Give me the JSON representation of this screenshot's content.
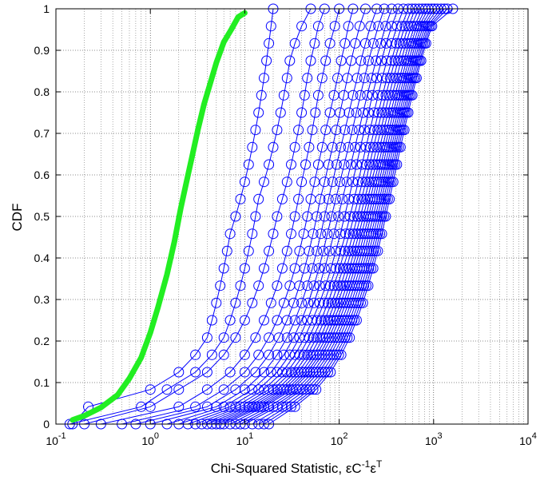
{
  "chart_data": {
    "type": "line",
    "title": "",
    "xlabel": "Chi-Squared Statistic, εC⁻¹εᵀ",
    "xlabel_parts": {
      "pre": "Chi-Squared Statistic, εC",
      "sup1": "-1",
      "mid": "ε",
      "sup2": "T"
    },
    "ylabel": "CDF",
    "xscale": "log",
    "xlim": [
      0.1,
      10000
    ],
    "ylim": [
      0,
      1
    ],
    "grid": true,
    "legend": "none",
    "x_ticks": [
      {
        "base": "10",
        "exp": "-1",
        "value": 0.1
      },
      {
        "base": "10",
        "exp": "0",
        "value": 1
      },
      {
        "base": "10",
        "exp": "1",
        "value": 10
      },
      {
        "base": "10",
        "exp": "2",
        "value": 100
      },
      {
        "base": "10",
        "exp": "3",
        "value": 1000
      },
      {
        "base": "10",
        "exp": "4",
        "value": 10000
      }
    ],
    "y_ticks": [
      "0",
      "0.1",
      "0.2",
      "0.3",
      "0.4",
      "0.5",
      "0.6",
      "0.7",
      "0.8",
      "0.9",
      "1"
    ],
    "colors": {
      "empirical": "#0000ff",
      "reference": "#22ee22",
      "grid": "#000000"
    },
    "reference_series": {
      "x": [
        0.15,
        0.2,
        0.3,
        0.45,
        0.6,
        0.8,
        1.0,
        1.2,
        1.5,
        1.8,
        2.1,
        2.4,
        2.8,
        3.2,
        3.7,
        4.3,
        5.0,
        6.0,
        7.2,
        8.5,
        10.0
      ],
      "y": [
        0.01,
        0.02,
        0.04,
        0.07,
        0.11,
        0.16,
        0.22,
        0.28,
        0.36,
        0.44,
        0.52,
        0.58,
        0.65,
        0.71,
        0.77,
        0.82,
        0.87,
        0.92,
        0.95,
        0.98,
        0.99
      ]
    },
    "empirical_series": [
      {
        "x": [
          0.15,
          0.22,
          1.0,
          2.0,
          3.0,
          4.0,
          4.5,
          5.0,
          5.5,
          6.0,
          6.5,
          7.0,
          8.0,
          9.0,
          10.0,
          11.0,
          12.0,
          13.0,
          14.0,
          15.0,
          16.0,
          17.0,
          18.0,
          19.0,
          20.0
        ]
      },
      {
        "x": [
          0.14,
          0.8,
          1.5,
          3.0,
          4.5,
          6.0,
          7.0,
          8.0,
          9.0,
          10.0,
          11.0,
          12.0,
          13.0,
          14.0,
          16.0,
          18.0,
          20.0,
          22.0,
          24.0,
          26.0,
          28.0,
          30.0,
          34.0,
          40.0,
          50.0
        ]
      },
      {
        "x": [
          0.2,
          1.0,
          2.0,
          4.0,
          6.0,
          8.0,
          10.0,
          12.0,
          14.0,
          16.0,
          18.0,
          20.0,
          22.0,
          25.0,
          28.0,
          31.0,
          34.0,
          37.0,
          40.0,
          43.0,
          46.0,
          50.0,
          55.0,
          60.0,
          70.0
        ]
      },
      {
        "x": [
          0.3,
          2.0,
          4.0,
          7.0,
          10.0,
          13.0,
          16.0,
          19.0,
          22.0,
          25.0,
          28.0,
          31.0,
          34.0,
          37.0,
          40.0,
          44.0,
          48.0,
          52.0,
          56.0,
          60.0,
          66.0,
          72.0,
          80.0,
          90.0,
          100.0
        ]
      },
      {
        "x": [
          0.5,
          3.0,
          6.0,
          10.0,
          14.0,
          18.0,
          22.0,
          26.0,
          30.0,
          34.0,
          38.0,
          42.0,
          46.0,
          50.0,
          55.0,
          60.0,
          66.0,
          72.0,
          80.0,
          88.0,
          96.0,
          105.0,
          115.0,
          125.0,
          140.0
        ]
      },
      {
        "x": [
          0.7,
          4.0,
          8.0,
          13.0,
          18.0,
          23.0,
          28.0,
          33.0,
          38.0,
          43.0,
          48.0,
          53.0,
          58.0,
          63.0,
          70.0,
          77.0,
          85.0,
          93.0,
          102.0,
          112.0,
          122.0,
          134.0,
          148.0,
          165.0,
          190.0
        ]
      },
      {
        "x": [
          1.0,
          5.0,
          10.0,
          16.0,
          22.0,
          28.0,
          34.0,
          40.0,
          46.0,
          52.0,
          58.0,
          64.0,
          70.0,
          77.0,
          85.0,
          94.0,
          104.0,
          115.0,
          127.0,
          140.0,
          155.0,
          170.0,
          190.0,
          215.0,
          250.0
        ]
      },
      {
        "x": [
          1.5,
          6.0,
          12.0,
          19.0,
          26.0,
          33.0,
          40.0,
          47.0,
          54.0,
          61.0,
          68.0,
          75.0,
          83.0,
          92.0,
          102.0,
          113.0,
          125.0,
          138.0,
          152.0,
          168.0,
          185.0,
          205.0,
          230.0,
          260.0,
          300.0
        ]
      },
      {
        "x": [
          2.0,
          7.0,
          14.0,
          22.0,
          30.0,
          38.0,
          46.0,
          54.0,
          62.0,
          70.0,
          79.0,
          88.0,
          98.0,
          108.0,
          120.0,
          133.0,
          147.0,
          162.0,
          179.0,
          198.0,
          220.0,
          245.0,
          275.0,
          310.0,
          360.0
        ]
      },
      {
        "x": [
          2.5,
          8.0,
          16.0,
          25.0,
          34.0,
          43.0,
          52.0,
          62.0,
          72.0,
          82.0,
          92.0,
          103.0,
          114.0,
          126.0,
          139.0,
          153.0,
          168.0,
          185.0,
          204.0,
          225.0,
          250.0,
          280.0,
          315.0,
          360.0,
          420.0
        ]
      },
      {
        "x": [
          3.0,
          9.0,
          18.0,
          28.0,
          38.0,
          48.0,
          58.0,
          69.0,
          80.0,
          92.0,
          104.0,
          117.0,
          130.0,
          144.0,
          159.0,
          175.0,
          192.0,
          212.0,
          234.0,
          258.0,
          286.0,
          320.0,
          360.0,
          410.0,
          480.0
        ]
      },
      {
        "x": [
          3.5,
          10.0,
          20.0,
          31.0,
          42.0,
          53.0,
          64.0,
          76.0,
          88.0,
          101.0,
          114.0,
          128.0,
          143.0,
          159.0,
          176.0,
          194.0,
          213.0,
          235.0,
          260.0,
          288.0,
          320.0,
          358.0,
          402.0,
          458.0,
          540.0
        ]
      },
      {
        "x": [
          4.0,
          11.0,
          22.0,
          34.0,
          46.0,
          58.0,
          70.0,
          83.0,
          96.0,
          110.0,
          125.0,
          140.0,
          156.0,
          173.0,
          191.0,
          210.0,
          231.0,
          255.0,
          282.0,
          312.0,
          347.0,
          388.0,
          436.0,
          497.0,
          590.0
        ]
      },
      {
        "x": [
          4.5,
          12.0,
          24.0,
          37.0,
          50.0,
          63.0,
          76.0,
          90.0,
          104.0,
          119.0,
          135.0,
          151.0,
          168.0,
          186.0,
          206.0,
          227.0,
          250.0,
          276.0,
          305.0,
          338.0,
          376.0,
          421.0,
          473.0,
          540.0,
          640.0
        ]
      },
      {
        "x": [
          5.0,
          13.0,
          26.0,
          40.0,
          54.0,
          68.0,
          82.0,
          97.0,
          112.0,
          128.0,
          145.0,
          162.0,
          180.0,
          200.0,
          221.0,
          244.0,
          269.0,
          297.0,
          328.0,
          364.0,
          405.0,
          453.0,
          510.0,
          582.0,
          700.0
        ]
      },
      {
        "x": [
          5.5,
          14.0,
          28.0,
          43.0,
          58.0,
          73.0,
          88.0,
          104.0,
          120.0,
          137.0,
          155.0,
          173.0,
          192.0,
          213.0,
          236.0,
          261.0,
          288.0,
          318.0,
          352.0,
          391.0,
          435.0,
          487.0,
          548.0,
          626.0,
          760.0
        ]
      },
      {
        "x": [
          6.0,
          15.0,
          30.0,
          46.0,
          62.0,
          78.0,
          94.0,
          111.0,
          128.0,
          146.0,
          165.0,
          184.0,
          204.0,
          226.0,
          250.0,
          276.0,
          305.0,
          337.0,
          373.0,
          414.0,
          461.0,
          516.0,
          581.0,
          664.0,
          820.0
        ]
      },
      {
        "x": [
          7.0,
          16.0,
          32.0,
          49.0,
          66.0,
          83.0,
          100.0,
          118.0,
          136.0,
          155.0,
          175.0,
          195.0,
          216.0,
          239.0,
          264.0,
          292.0,
          322.0,
          356.0,
          394.0,
          437.0,
          487.0,
          545.0,
          614.0,
          702.0,
          880.0
        ]
      },
      {
        "x": [
          8.0,
          18.0,
          35.0,
          53.0,
          71.0,
          89.0,
          107.0,
          126.0,
          145.0,
          165.0,
          186.0,
          207.0,
          229.0,
          253.0,
          279.0,
          308.0,
          340.0,
          375.0,
          415.0,
          460.0,
          512.0,
          573.0,
          646.0,
          740.0,
          950.0
        ]
      },
      {
        "x": [
          9.0,
          20.0,
          38.0,
          57.0,
          76.0,
          95.0,
          114.0,
          134.0,
          154.0,
          175.0,
          197.0,
          219.0,
          242.0,
          267.0,
          294.0,
          324.0,
          357.0,
          394.0,
          436.0,
          483.0,
          537.0,
          601.0,
          678.0,
          778.0,
          1020.0
        ]
      },
      {
        "x": [
          10.0,
          22.0,
          41.0,
          61.0,
          81.0,
          101.0,
          121.0,
          142.0,
          163.0,
          185.0,
          208.0,
          231.0,
          255.0,
          281.0,
          309.0,
          340.0,
          374.0,
          413.0,
          457.0,
          506.0,
          562.0,
          629.0,
          710.0,
          816.0,
          1100.0
        ]
      },
      {
        "x": [
          12.0,
          25.0,
          45.0,
          66.0,
          87.0,
          108.0,
          129.0,
          151.0,
          173.0,
          196.0,
          220.0,
          244.0,
          269.0,
          296.0,
          325.0,
          357.0,
          392.0,
          432.0,
          478.0,
          529.0,
          588.0,
          658.0,
          743.0,
          855.0,
          1200.0
        ]
      },
      {
        "x": [
          14.0,
          28.0,
          49.0,
          71.0,
          93.0,
          115.0,
          137.0,
          160.0,
          183.0,
          207.0,
          232.0,
          257.0,
          283.0,
          311.0,
          341.0,
          374.0,
          410.0,
          451.0,
          498.0,
          551.0,
          612.0,
          685.0,
          774.0,
          892.0,
          1300.0
        ]
      },
      {
        "x": [
          16.0,
          31.0,
          53.0,
          76.0,
          99.0,
          122.0,
          145.0,
          169.0,
          193.0,
          218.0,
          244.0,
          270.0,
          297.0,
          326.0,
          357.0,
          391.0,
          428.0,
          470.0,
          518.0,
          573.0,
          636.0,
          711.0,
          803.0,
          928.0,
          1400.0
        ]
      },
      {
        "x": [
          18.0,
          34.0,
          57.0,
          81.0,
          105.0,
          129.0,
          153.0,
          178.0,
          203.0,
          229.0,
          256.0,
          283.0,
          311.0,
          341.0,
          373.0,
          408.0,
          446.0,
          489.0,
          538.0,
          594.0,
          659.0,
          736.0,
          831.0,
          962.0,
          1600.0
        ]
      }
    ]
  }
}
